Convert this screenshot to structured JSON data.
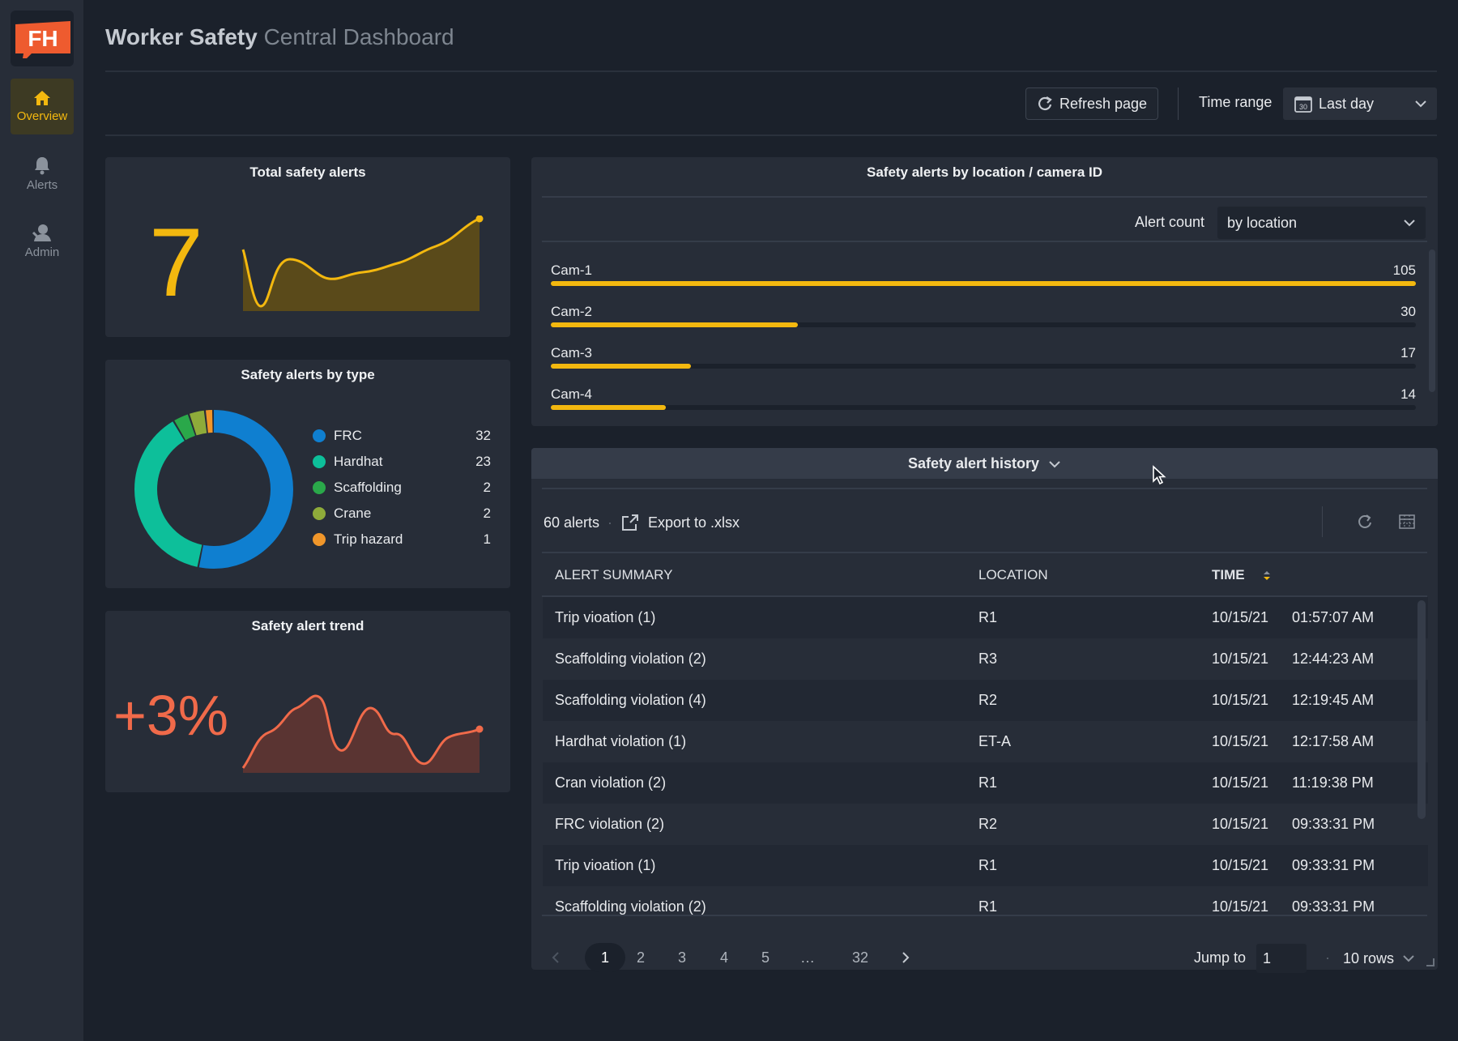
{
  "app": {
    "logo_text": "FH",
    "title_main": "Worker Safety",
    "title_sub": "Central Dashboard"
  },
  "sidebar": {
    "items": [
      {
        "label": "Overview",
        "icon": "home-icon",
        "active": true
      },
      {
        "label": "Alerts",
        "icon": "bell-icon",
        "active": false
      },
      {
        "label": "Admin",
        "icon": "user-icon",
        "active": false
      }
    ]
  },
  "toolbar": {
    "refresh_label": "Refresh page",
    "time_range_label": "Time range",
    "time_range_value": "Last day",
    "calendar_icon_text": "30"
  },
  "total": {
    "title": "Total safety alerts",
    "value": "7",
    "color": "#f3b80f"
  },
  "by_type": {
    "title": "Safety alerts by type",
    "items": [
      {
        "name": "FRC",
        "value": "32",
        "color": "#0f7fd0"
      },
      {
        "name": "Hardhat",
        "value": "23",
        "color": "#0dbf9a"
      },
      {
        "name": "Scaffolding",
        "value": "2",
        "color": "#2aa84a"
      },
      {
        "name": "Crane",
        "value": "2",
        "color": "#8eab3a"
      },
      {
        "name": "Trip hazard",
        "value": "1",
        "color": "#f0962a"
      }
    ]
  },
  "trend": {
    "title": "Safety alert trend",
    "value": "+3%",
    "color": "#f06a4a"
  },
  "by_location": {
    "title": "Safety alerts by location / camera ID",
    "alert_count_label": "Alert count",
    "alert_count_value": "by location",
    "cams": [
      {
        "name": "Cam-1",
        "value": "105",
        "count": 105
      },
      {
        "name": "Cam-2",
        "value": "30",
        "count": 30
      },
      {
        "name": "Cam-3",
        "value": "17",
        "count": 17
      },
      {
        "name": "Cam-4",
        "value": "14",
        "count": 14
      }
    ]
  },
  "history": {
    "title": "Safety alert history",
    "count_text": "60 alerts",
    "export_label": "Export to .xlsx",
    "columns": [
      "ALERT SUMMARY",
      "LOCATION",
      "TIME"
    ],
    "rows": [
      {
        "summary": "Trip vioation (1)",
        "location": "R1",
        "date": "10/15/21",
        "time": "01:57:07 AM"
      },
      {
        "summary": "Scaffolding violation (2)",
        "location": "R3",
        "date": "10/15/21",
        "time": "12:44:23 AM"
      },
      {
        "summary": "Scaffolding violation (4)",
        "location": "R2",
        "date": "10/15/21",
        "time": "12:19:45 AM"
      },
      {
        "summary": "Hardhat violation (1)",
        "location": "ET-A",
        "date": "10/15/21",
        "time": "12:17:58 AM"
      },
      {
        "summary": "Cran violation (2)",
        "location": "R1",
        "date": "10/15/21",
        "time": "11:19:38 PM"
      },
      {
        "summary": "FRC violation (2)",
        "location": "R2",
        "date": "10/15/21",
        "time": "09:33:31 PM"
      },
      {
        "summary": "Trip vioation (1)",
        "location": "R1",
        "date": "10/15/21",
        "time": "09:33:31 PM"
      },
      {
        "summary": "Scaffolding violation (2)",
        "location": "R1",
        "date": "10/15/21",
        "time": "09:33:31 PM"
      }
    ],
    "pagination": {
      "pages": [
        "1",
        "2",
        "3",
        "4",
        "5",
        "…",
        "32"
      ],
      "current": "1",
      "jump_label": "Jump to",
      "jump_value": "1",
      "separator": "·",
      "rows_label": "10 rows"
    }
  }
}
